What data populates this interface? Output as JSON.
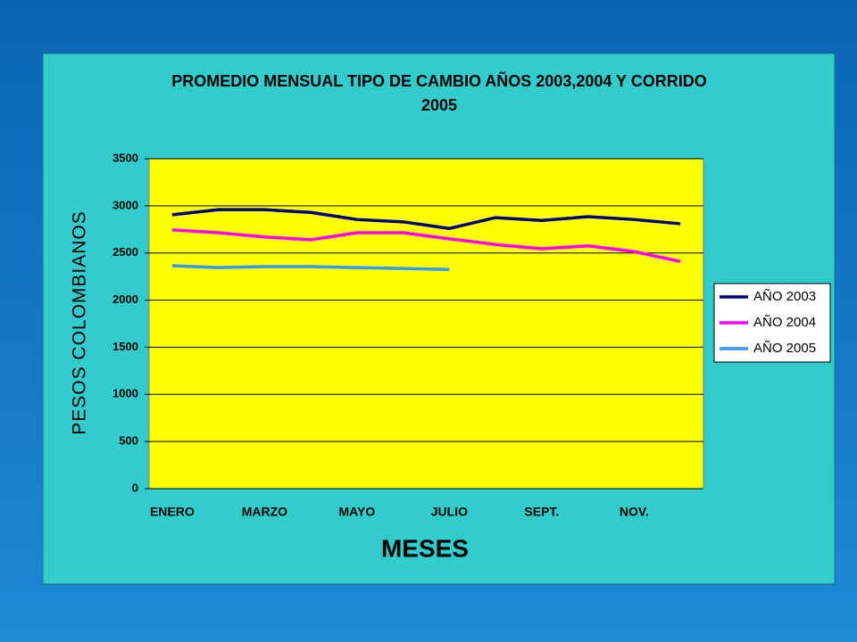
{
  "chart_data": {
    "type": "line",
    "title": "PROMEDIO MENSUAL TIPO DE CAMBIO AÑOS 2003,2004 Y CORRIDO",
    "subtitle": "2005",
    "x_label": "MESES",
    "y_label": "PESOS COLOMBIANOS",
    "categories": [
      "ENERO",
      null,
      "MARZO",
      null,
      "MAYO",
      null,
      "JULIO",
      null,
      "SEPT.",
      null,
      "NOV.",
      null
    ],
    "series": [
      {
        "name": "AÑO 2003",
        "color": "#000080",
        "values": [
          2905,
          2960,
          2960,
          2930,
          2855,
          2830,
          2760,
          2875,
          2845,
          2885,
          2855,
          2810
        ]
      },
      {
        "name": "AÑO 2004",
        "color": "#ff00ff",
        "values": [
          2745,
          2715,
          2670,
          2640,
          2715,
          2715,
          2650,
          2590,
          2545,
          2575,
          2515,
          2410
        ]
      },
      {
        "name": "AÑO 2005",
        "color": "#3399ff",
        "values": [
          2365,
          2345,
          2355,
          2355,
          2345,
          2335,
          2325,
          null,
          null,
          null,
          null,
          null
        ]
      }
    ],
    "ylim": [
      0,
      3500
    ],
    "yticks": [
      0,
      500,
      1000,
      1500,
      2000,
      2500,
      3000,
      3500
    ],
    "grid": true,
    "legend": "right"
  }
}
